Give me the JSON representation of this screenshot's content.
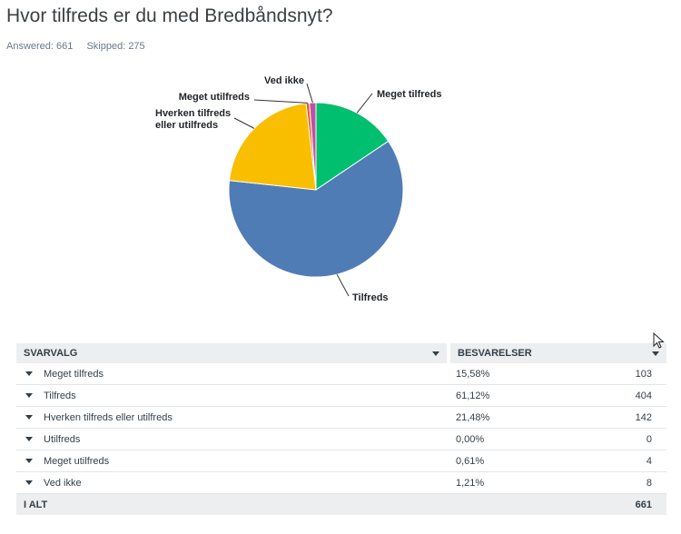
{
  "title": "Hvor tilfreds er du med Bredbåndsnyt?",
  "answered": "Answered: 661",
  "skipped": "Skipped: 275",
  "chart_data": {
    "type": "pie",
    "categories": [
      "Meget tilfreds",
      "Tilfreds",
      "Hverken tilfreds eller utilfreds",
      "Utilfreds",
      "Meget utilfreds",
      "Ved ikke"
    ],
    "values": [
      15.58,
      61.12,
      21.48,
      0.0,
      0.61,
      1.21
    ],
    "labels": [
      "Meget tilfreds",
      "Tilfreds",
      "Hverken tilfreds eller utilfreds",
      "",
      "Meget utilfreds",
      "Ved ikke"
    ],
    "colors": [
      "#00bf6f",
      "#507cb6",
      "#f9be00",
      "#6bc8cd",
      "#f05b24",
      "#b853a3"
    ]
  },
  "table": {
    "col1": "SVARVALG",
    "col2": "BESVARELSER",
    "rows": [
      {
        "label": "Meget tilfreds",
        "pct": "15,58%",
        "count": "103"
      },
      {
        "label": "Tilfreds",
        "pct": "61,12%",
        "count": "404"
      },
      {
        "label": "Hverken tilfreds eller utilfreds",
        "pct": "21,48%",
        "count": "142"
      },
      {
        "label": "Utilfreds",
        "pct": "0,00%",
        "count": "0"
      },
      {
        "label": "Meget utilfreds",
        "pct": "0,61%",
        "count": "4"
      },
      {
        "label": "Ved ikke",
        "pct": "1,21%",
        "count": "8"
      }
    ],
    "total_label": "I ALT",
    "total_count": "661"
  },
  "icons": {
    "row_toggle": "caret-down-icon",
    "sort": "caret-down-icon",
    "pointer": "mouse-cursor-icon"
  }
}
